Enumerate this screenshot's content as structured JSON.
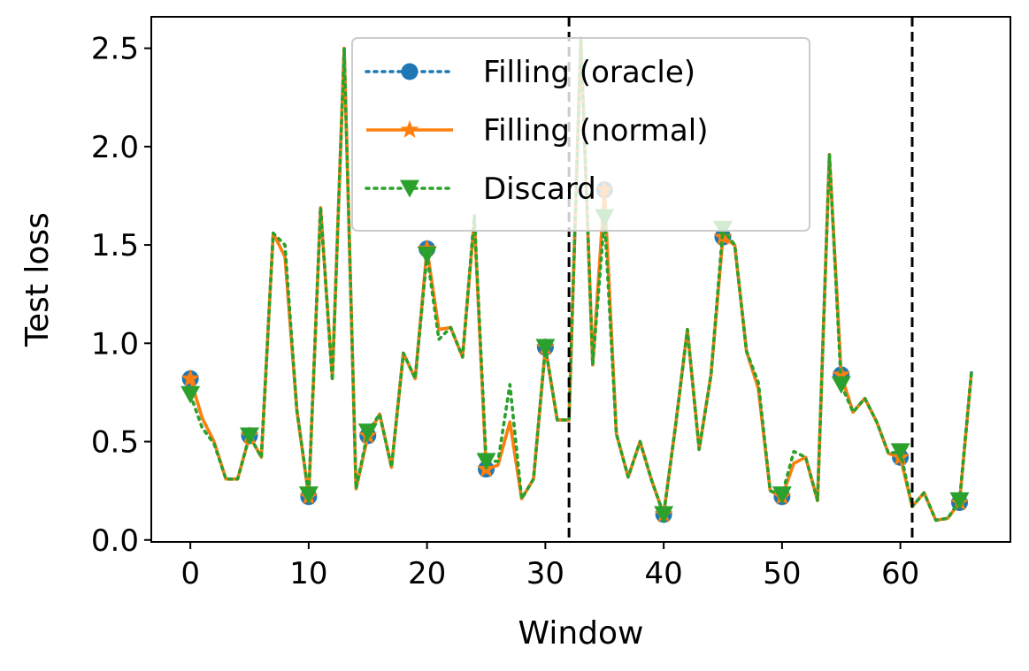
{
  "chart_data": {
    "type": "line",
    "title": "",
    "xlabel": "Window",
    "ylabel": "Test loss",
    "xlim": [
      -3.3,
      69.3
    ],
    "ylim": [
      -0.01,
      2.66
    ],
    "xticks": [
      0,
      10,
      20,
      30,
      40,
      50,
      60
    ],
    "yticks": [
      0.0,
      0.5,
      1.0,
      1.5,
      2.0,
      2.5
    ],
    "ytick_labels": [
      "0.0",
      "0.5",
      "1.0",
      "1.5",
      "2.0",
      "2.5"
    ],
    "grid": false,
    "legend_position": "top-center",
    "vlines": [
      32,
      61
    ],
    "x": [
      0,
      1,
      2,
      3,
      4,
      5,
      6,
      7,
      8,
      9,
      10,
      11,
      12,
      13,
      14,
      15,
      16,
      17,
      18,
      19,
      20,
      21,
      22,
      23,
      24,
      25,
      26,
      27,
      28,
      29,
      30,
      31,
      32,
      33,
      34,
      35,
      36,
      37,
      38,
      39,
      40,
      41,
      42,
      43,
      44,
      45,
      46,
      47,
      48,
      49,
      50,
      51,
      52,
      53,
      54,
      55,
      56,
      57,
      58,
      59,
      60,
      61,
      62,
      63,
      64,
      65,
      66
    ],
    "series": [
      {
        "name": "Filling (oracle)",
        "color": "#1f77b4",
        "marker": "circle",
        "linestyle": "dotted",
        "markevery": 5,
        "values": [
          0.82,
          0.62,
          0.5,
          0.31,
          0.31,
          0.53,
          0.42,
          1.56,
          1.44,
          0.66,
          0.22,
          1.69,
          0.82,
          2.5,
          0.26,
          0.53,
          0.64,
          0.37,
          0.95,
          0.82,
          1.48,
          1.07,
          1.08,
          0.93,
          1.63,
          0.36,
          0.38,
          0.6,
          0.21,
          0.31,
          0.98,
          0.61,
          0.61,
          2.55,
          0.89,
          1.78,
          0.54,
          0.32,
          0.5,
          0.3,
          0.13,
          0.58,
          1.07,
          0.46,
          0.84,
          1.54,
          1.5,
          0.96,
          0.77,
          0.25,
          0.22,
          0.39,
          0.42,
          0.2,
          1.96,
          0.84,
          0.65,
          0.72,
          0.6,
          0.44,
          0.42,
          0.17,
          0.24,
          0.1,
          0.11,
          0.19,
          0.85
        ]
      },
      {
        "name": "Filling (normal)",
        "color": "#ff7f0e",
        "marker": "star",
        "linestyle": "solid",
        "markevery": 5,
        "values": [
          0.82,
          0.62,
          0.5,
          0.31,
          0.31,
          0.53,
          0.42,
          1.56,
          1.44,
          0.66,
          0.22,
          1.69,
          0.82,
          2.5,
          0.26,
          0.53,
          0.64,
          0.37,
          0.95,
          0.82,
          1.48,
          1.07,
          1.08,
          0.93,
          1.63,
          0.36,
          0.38,
          0.6,
          0.21,
          0.31,
          0.98,
          0.61,
          0.61,
          2.55,
          0.89,
          1.78,
          0.54,
          0.32,
          0.5,
          0.3,
          0.13,
          0.58,
          1.07,
          0.46,
          0.84,
          1.54,
          1.5,
          0.96,
          0.77,
          0.25,
          0.22,
          0.39,
          0.42,
          0.2,
          1.96,
          0.84,
          0.65,
          0.72,
          0.6,
          0.44,
          0.42,
          0.17,
          0.24,
          0.1,
          0.11,
          0.19,
          0.85
        ]
      },
      {
        "name": "Discard",
        "color": "#2ca02c",
        "marker": "triangle-down",
        "linestyle": "dotted",
        "markevery": 5,
        "values": [
          0.74,
          0.57,
          0.49,
          0.31,
          0.31,
          0.53,
          0.42,
          1.56,
          1.5,
          0.66,
          0.23,
          1.69,
          0.81,
          2.5,
          0.26,
          0.55,
          0.64,
          0.37,
          0.95,
          0.82,
          1.45,
          1.02,
          1.08,
          0.93,
          1.65,
          0.4,
          0.4,
          0.79,
          0.21,
          0.31,
          0.98,
          0.61,
          0.61,
          2.55,
          0.89,
          1.64,
          0.54,
          0.32,
          0.5,
          0.3,
          0.13,
          0.58,
          1.07,
          0.46,
          0.84,
          1.58,
          1.5,
          0.96,
          0.8,
          0.25,
          0.23,
          0.45,
          0.42,
          0.2,
          1.96,
          0.79,
          0.65,
          0.72,
          0.6,
          0.44,
          0.45,
          0.17,
          0.24,
          0.1,
          0.11,
          0.2,
          0.85
        ]
      }
    ]
  }
}
